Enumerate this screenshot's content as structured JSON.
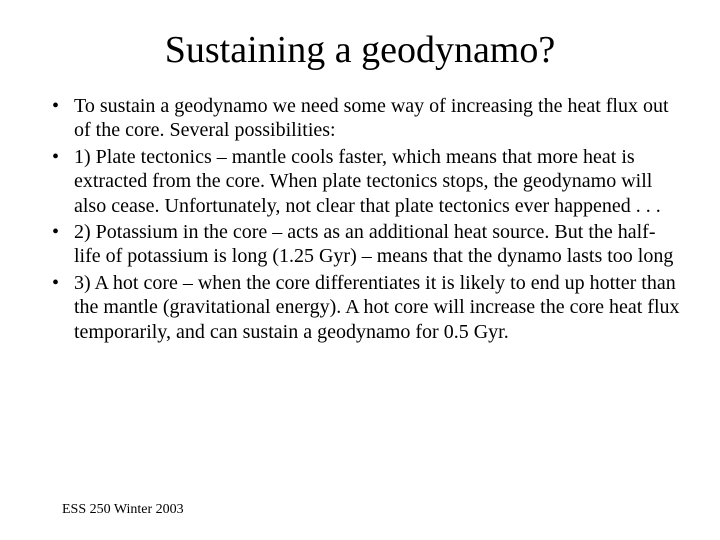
{
  "title": "Sustaining a geodynamo?",
  "bullets": [
    "To sustain a geodynamo we need some way of increasing the heat flux out of the core. Several possibilities:",
    "1) Plate tectonics – mantle cools faster, which means that more heat is extracted from the core. When plate tectonics stops, the geodynamo will also cease. Unfortunately, not clear that plate tectonics ever happened . . .",
    "2) Potassium in the core – acts as an additional heat source. But the half-life of potassium is long (1.25 Gyr) – means that the dynamo lasts too long",
    "3) A hot core – when the core differentiates it is likely to end up hotter than the mantle (gravitational energy). A hot core will increase the core heat flux temporarily, and can sustain a geodynamo for 0.5 Gyr."
  ],
  "footer": "ESS 250 Winter 2003",
  "colors": {
    "background": "#ffffff",
    "text": "#000000"
  },
  "typography": {
    "title_fontsize": 38,
    "body_fontsize": 20,
    "footer_fontsize": 14,
    "family": "Times New Roman"
  }
}
